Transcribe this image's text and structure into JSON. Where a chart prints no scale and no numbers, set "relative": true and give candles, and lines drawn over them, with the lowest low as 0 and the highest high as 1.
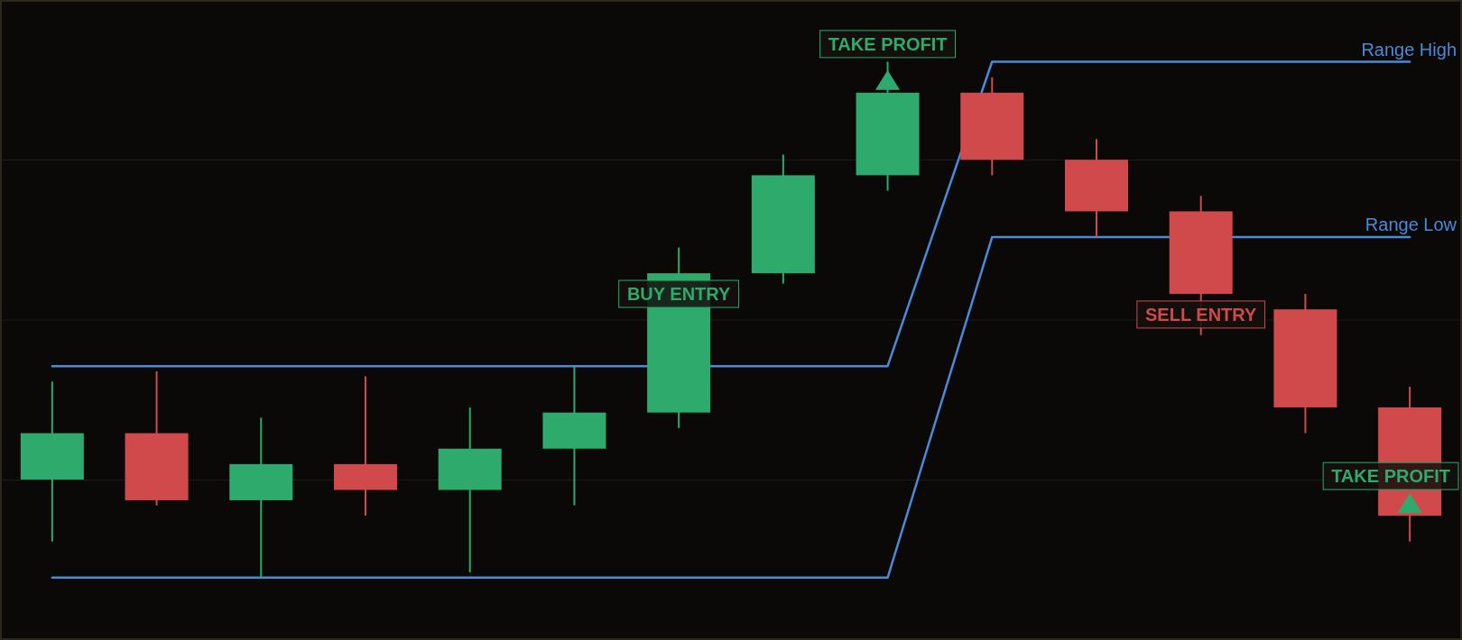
{
  "chart_data": {
    "type": "candlestick",
    "relative": true,
    "grid": "y",
    "categories": [
      null,
      null,
      null,
      null,
      null,
      null,
      null,
      null,
      null,
      null,
      null,
      null,
      null,
      null
    ],
    "ohlc": [
      [
        0.19,
        0.38,
        0.07,
        0.28
      ],
      [
        0.28,
        0.4,
        0.14,
        0.15
      ],
      [
        0.15,
        0.31,
        0.0,
        0.22
      ],
      [
        0.22,
        0.39,
        0.12,
        0.17
      ],
      [
        0.17,
        0.33,
        0.01,
        0.25
      ],
      [
        0.25,
        0.41,
        0.14,
        0.32
      ],
      [
        0.32,
        0.64,
        0.29,
        0.59
      ],
      [
        0.59,
        0.82,
        0.57,
        0.78
      ],
      [
        0.78,
        1.0,
        0.75,
        0.94
      ],
      [
        0.94,
        0.97,
        0.78,
        0.81
      ],
      [
        0.81,
        0.85,
        0.66,
        0.71
      ],
      [
        0.71,
        0.74,
        0.47,
        0.55
      ],
      [
        0.52,
        0.55,
        0.28,
        0.33
      ],
      [
        0.33,
        0.37,
        0.07,
        0.12
      ]
    ],
    "colors": [
      "#2eaa6c",
      "#d04a4c",
      "#2eaa6c",
      "#d04a4c",
      "#2eaa6c",
      "#2eaa6c",
      "#2eaa6c",
      "#2eaa6c",
      "#2eaa6c",
      "#d04a4c",
      "#d04a4c",
      "#d04a4c",
      "#d04a4c",
      "#d04a4c"
    ],
    "series": [
      {
        "name": "Range High",
        "type": "line",
        "color": "#4a8ad6",
        "values": [
          0.41,
          0.41,
          0.41,
          0.41,
          0.41,
          0.41,
          null,
          0.41,
          0.41,
          1.0,
          1.0,
          1.0,
          1.0,
          1.0
        ]
      },
      {
        "name": "Range Low",
        "type": "line",
        "color": "#4a8ad6",
        "values": [
          0.0,
          0.0,
          0.0,
          0.0,
          0.0,
          0.0,
          0.0,
          0.0,
          0.0,
          0.66,
          0.66,
          null,
          0.66,
          0.66
        ]
      }
    ],
    "annotations": [
      {
        "text": "TAKE PROFIT",
        "y": 0.94
      },
      {
        "text": "BUY ENTRY",
        "y": 0.55
      },
      {
        "text": "SELL ENTRY",
        "y": 0.51
      },
      {
        "text": "TAKE PROFIT",
        "y": 0.12
      }
    ]
  }
}
